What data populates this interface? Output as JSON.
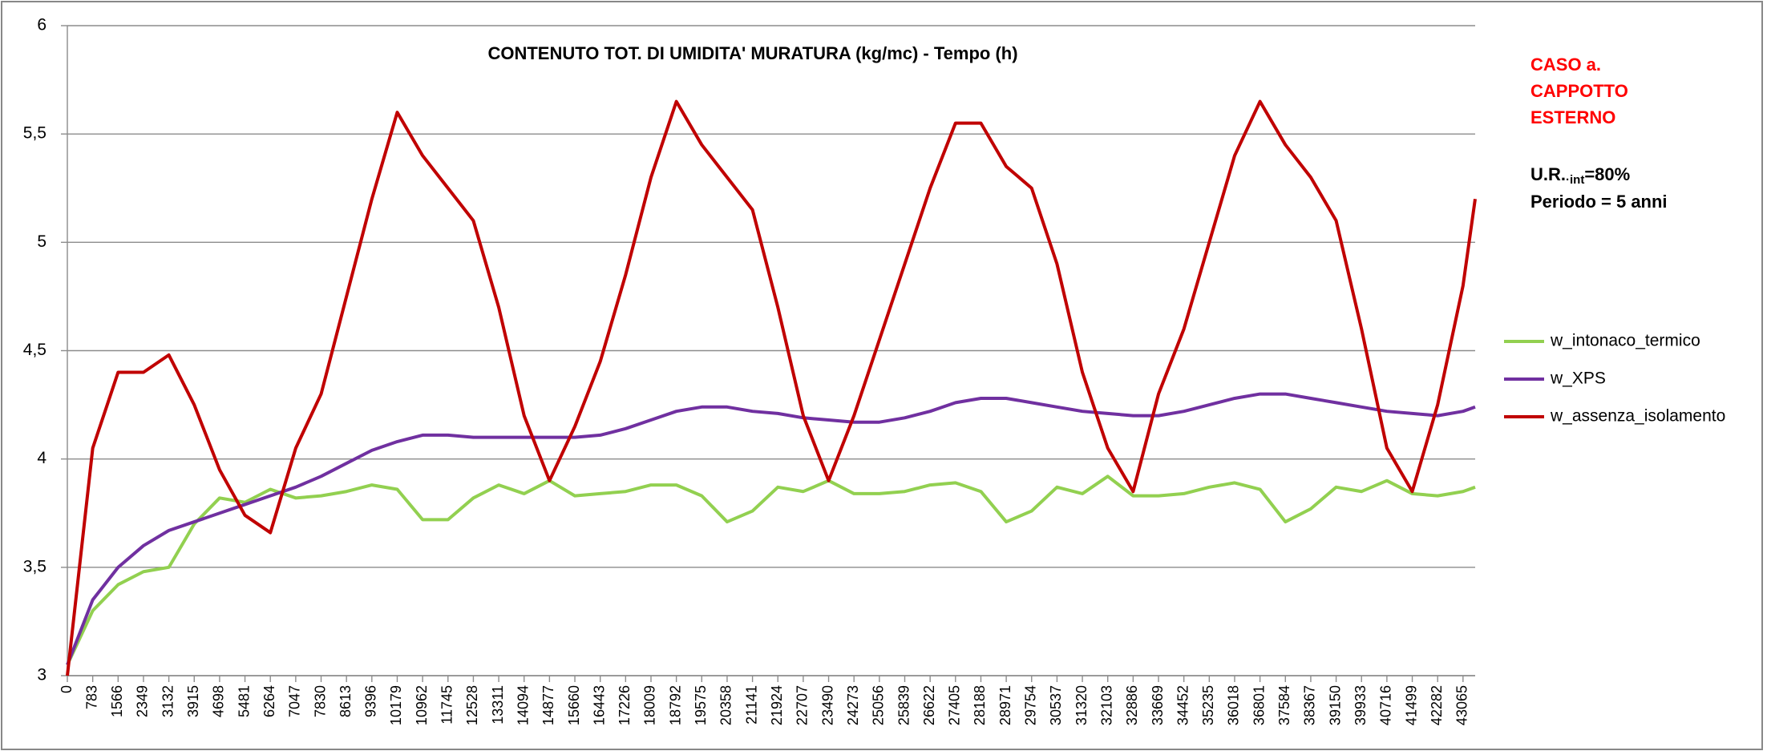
{
  "chart_data": {
    "type": "line",
    "title": "CONTENUTO TOT. DI UMIDITA' MURATURA (kg/mc) - Tempo (h)",
    "annotations": {
      "case": [
        "CASO a.",
        "CAPPOTTO",
        "ESTERNO"
      ],
      "ur": {
        "main": "U.R.",
        "sub": "·int",
        "rest": "=80%"
      },
      "period": "Periodo = 5 anni"
    },
    "x": [
      0,
      783,
      1566,
      2349,
      3132,
      3915,
      4698,
      5481,
      6264,
      7047,
      7830,
      8613,
      9396,
      10179,
      10962,
      11745,
      12528,
      13311,
      14094,
      14877,
      15660,
      16443,
      17226,
      18009,
      18792,
      19575,
      20358,
      21141,
      21924,
      22707,
      23490,
      24273,
      25056,
      25839,
      26622,
      27405,
      28188,
      28971,
      29754,
      30537,
      31320,
      32103,
      32886,
      33669,
      34452,
      35235,
      36018,
      36801,
      37584,
      38367,
      39150,
      39933,
      40716,
      41499,
      42282,
      43065,
      43440
    ],
    "xlim": [
      0,
      43440
    ],
    "xticks": [
      0,
      783,
      1566,
      2349,
      3132,
      3915,
      4698,
      5481,
      6264,
      7047,
      7830,
      8613,
      9396,
      10179,
      10962,
      11745,
      12528,
      13311,
      14094,
      14877,
      15660,
      16443,
      17226,
      18009,
      18792,
      19575,
      20358,
      21141,
      21924,
      22707,
      23490,
      24273,
      25056,
      25839,
      26622,
      27405,
      28188,
      28971,
      29754,
      30537,
      31320,
      32103,
      32886,
      33669,
      34452,
      35235,
      36018,
      36801,
      37584,
      38367,
      39150,
      39933,
      40716,
      41499,
      42282,
      43065
    ],
    "ylim": [
      3,
      6
    ],
    "yticks": [
      3,
      {
        "value": 3.5,
        "label": "3,5"
      },
      4,
      {
        "value": 4.5,
        "label": "4,5"
      },
      5,
      {
        "value": 5.5,
        "label": "5,5"
      },
      6
    ],
    "grid": true,
    "legend": "right",
    "series": [
      {
        "name": "w_intonaco_termico",
        "color": "#92d050",
        "values": [
          3.05,
          3.3,
          3.42,
          3.48,
          3.5,
          3.7,
          3.82,
          3.8,
          3.86,
          3.82,
          3.83,
          3.85,
          3.88,
          3.86,
          3.72,
          3.72,
          3.82,
          3.88,
          3.84,
          3.9,
          3.83,
          3.84,
          3.85,
          3.88,
          3.88,
          3.83,
          3.71,
          3.76,
          3.87,
          3.85,
          3.9,
          3.84,
          3.84,
          3.85,
          3.88,
          3.89,
          3.85,
          3.71,
          3.76,
          3.87,
          3.84,
          3.92,
          3.83,
          3.83,
          3.84,
          3.87,
          3.89,
          3.86,
          3.71,
          3.77,
          3.87,
          3.85,
          3.9,
          3.84,
          3.83,
          3.85,
          3.87
        ]
      },
      {
        "name": "w_XPS",
        "color": "#7030a0",
        "values": [
          3.05,
          3.35,
          3.5,
          3.6,
          3.67,
          3.71,
          3.75,
          3.79,
          3.83,
          3.87,
          3.92,
          3.98,
          4.04,
          4.08,
          4.11,
          4.11,
          4.1,
          4.1,
          4.1,
          4.1,
          4.1,
          4.11,
          4.14,
          4.18,
          4.22,
          4.24,
          4.24,
          4.22,
          4.21,
          4.19,
          4.18,
          4.17,
          4.17,
          4.19,
          4.22,
          4.26,
          4.28,
          4.28,
          4.26,
          4.24,
          4.22,
          4.21,
          4.2,
          4.2,
          4.22,
          4.25,
          4.28,
          4.3,
          4.3,
          4.28,
          4.26,
          4.24,
          4.22,
          4.21,
          4.2,
          4.22,
          4.24
        ]
      },
      {
        "name": "w_assenza_isolamento",
        "color": "#c00000",
        "values": [
          3.0,
          4.05,
          4.4,
          4.4,
          4.48,
          4.25,
          3.95,
          3.74,
          3.66,
          4.05,
          4.3,
          4.75,
          5.2,
          5.6,
          5.4,
          5.25,
          5.1,
          4.7,
          4.2,
          3.9,
          4.15,
          4.45,
          4.85,
          5.3,
          5.65,
          5.45,
          5.3,
          5.15,
          4.7,
          4.2,
          3.9,
          4.2,
          4.55,
          4.9,
          5.25,
          5.55,
          5.55,
          5.35,
          5.25,
          4.9,
          4.4,
          4.05,
          3.85,
          4.3,
          4.6,
          5.0,
          5.4,
          5.65,
          5.45,
          5.3,
          5.1,
          4.6,
          4.05,
          3.85,
          4.25,
          4.8,
          5.2
        ]
      }
    ]
  }
}
